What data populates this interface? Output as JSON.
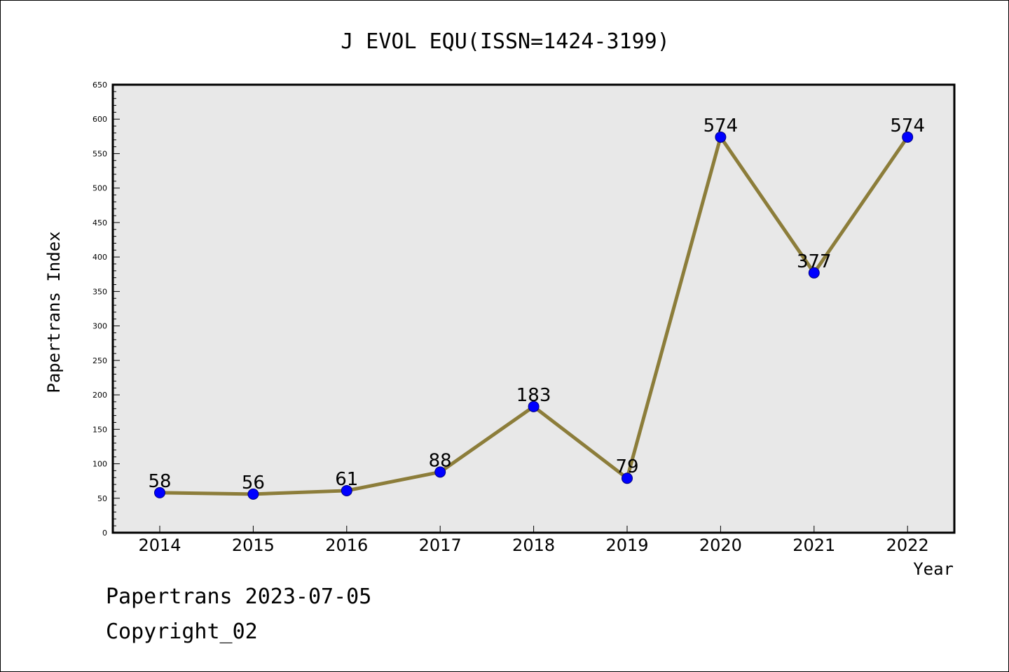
{
  "chart_data": {
    "type": "line",
    "title": "J EVOL EQU(ISSN=1424-3199)",
    "xlabel": "Year",
    "ylabel": "Papertrans Index",
    "categories": [
      "2014",
      "2015",
      "2016",
      "2017",
      "2018",
      "2019",
      "2020",
      "2021",
      "2022"
    ],
    "series": [
      {
        "values": [
          58,
          56,
          61,
          88,
          183,
          79,
          574,
          377,
          574
        ],
        "labels": [
          "58",
          "56",
          "61",
          "88",
          "183",
          "79",
          "574",
          "377",
          "574"
        ]
      }
    ],
    "ylim": [
      0,
      650
    ],
    "y_ticks": [
      "0",
      "50",
      "100",
      "150",
      "200",
      "250",
      "300",
      "350",
      "400",
      "450",
      "500",
      "550",
      "600",
      "650"
    ],
    "y_minor_step": 10,
    "grid": false,
    "legend": "none",
    "colors": {
      "line": "#8c7d3a",
      "marker_fill": "#0000ff",
      "marker_stroke": "#000080",
      "plot_background": "#e8e8e8",
      "frame": "#000000"
    }
  },
  "footer": {
    "date_text": "Papertrans 2023-07-05",
    "copyright_text": "Copyright_02"
  }
}
